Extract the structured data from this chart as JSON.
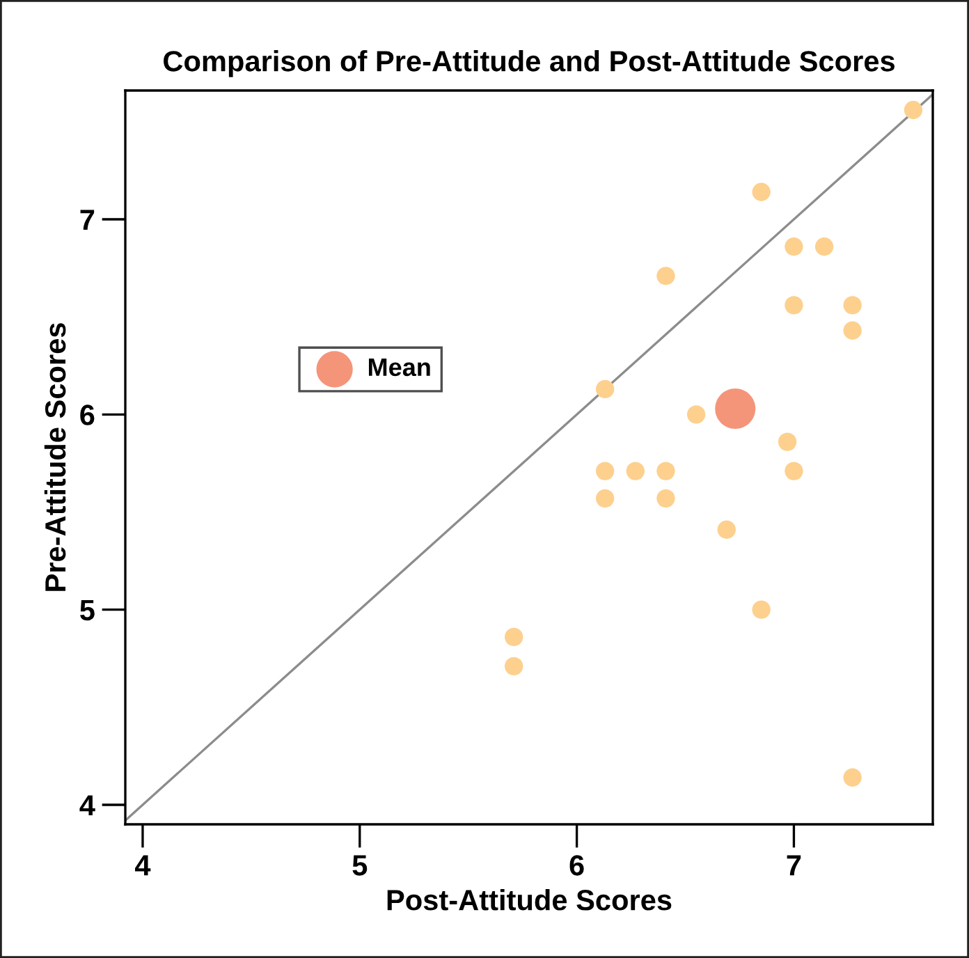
{
  "chart_data": {
    "type": "scatter",
    "title": "Comparison of Pre-Attitude and Post-Attitude Scores",
    "xlabel": "Post-Attitude Scores",
    "ylabel": "Pre-Attitude Scores",
    "xlim": [
      3.92,
      7.64
    ],
    "ylim": [
      3.9,
      7.66
    ],
    "xticks": [
      4,
      5,
      6,
      7
    ],
    "yticks": [
      4,
      5,
      6,
      7
    ],
    "grid": false,
    "legend": "center left",
    "marker": "circle",
    "series": [
      {
        "type": "line",
        "color": "#8c8c8c",
        "x": [
          3.92,
          7.64
        ],
        "values": [
          3.92,
          7.64
        ],
        "marker": "none"
      },
      {
        "color": "#fdd08e",
        "x": [
          7.55,
          6.85,
          7.0,
          7.14,
          6.41,
          7.0,
          7.27,
          7.27,
          6.13,
          6.55,
          6.97,
          6.13,
          6.27,
          6.41,
          7.0,
          6.13,
          6.41,
          6.69,
          6.85,
          5.71,
          5.71,
          7.27
        ],
        "values": [
          7.56,
          7.14,
          6.86,
          6.86,
          6.71,
          6.56,
          6.56,
          6.43,
          6.13,
          6.0,
          5.86,
          5.71,
          5.71,
          5.71,
          5.71,
          5.57,
          5.57,
          5.41,
          5.0,
          4.86,
          4.71,
          4.14
        ]
      },
      {
        "name": "Mean",
        "color": "#f4957a",
        "x": [
          6.73
        ],
        "values": [
          6.03
        ]
      }
    ]
  }
}
